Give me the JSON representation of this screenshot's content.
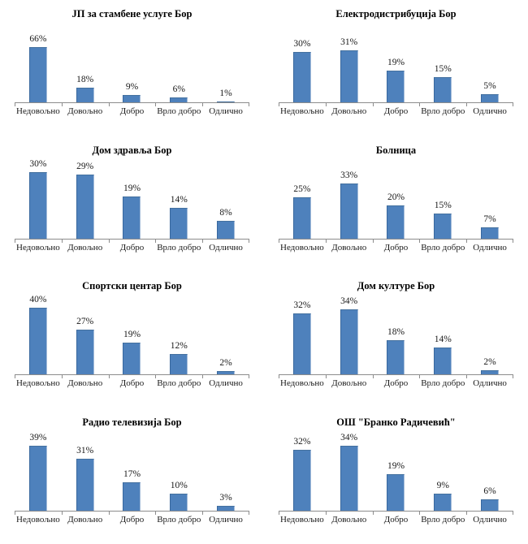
{
  "style": {
    "bar_color": "#4E81BC",
    "bar_border_dark": "#39689E",
    "bar_border_light": "#A3BBD9",
    "axis_color": "#8C8C8C",
    "text_color": "#1A1A1A"
  },
  "chart_data": [
    {
      "type": "bar",
      "title": "ЈП за стамбене услуге Бор",
      "categories": [
        "Недовољно",
        "Довољно",
        "Добро",
        "Врло добро",
        "Одлично"
      ],
      "values": [
        66,
        18,
        9,
        6,
        1
      ],
      "value_labels": [
        "66%",
        "18%",
        "9%",
        "6%",
        "1%"
      ],
      "unit": "%",
      "ylim": [
        0,
        80
      ],
      "grid": false,
      "legend": false
    },
    {
      "type": "bar",
      "title": "Електродистрибуција Бор",
      "categories": [
        "Недовољно",
        "Довољно",
        "Добро",
        "Врло добро",
        "Одлично"
      ],
      "values": [
        30,
        31,
        19,
        15,
        5
      ],
      "value_labels": [
        "30%",
        "31%",
        "19%",
        "15%",
        "5%"
      ],
      "unit": "%",
      "ylim": [
        0,
        40
      ],
      "grid": false,
      "legend": false
    },
    {
      "type": "bar",
      "title": "Дом здравља Бор",
      "categories": [
        "Недовољно",
        "Довољно",
        "Добро",
        "Врло добро",
        "Одлично"
      ],
      "values": [
        30,
        29,
        19,
        14,
        8
      ],
      "value_labels": [
        "30%",
        "29%",
        "19%",
        "14%",
        "8%"
      ],
      "unit": "%",
      "ylim": [
        0,
        30
      ],
      "grid": false,
      "legend": false
    },
    {
      "type": "bar",
      "title": "Болница",
      "categories": [
        "Недовољно",
        "Довољно",
        "Добро",
        "Врло добро",
        "Одлично"
      ],
      "values": [
        25,
        33,
        20,
        15,
        7
      ],
      "value_labels": [
        "25%",
        "33%",
        "20%",
        "15%",
        "7%"
      ],
      "unit": "%",
      "ylim": [
        0,
        40
      ],
      "grid": false,
      "legend": false
    },
    {
      "type": "bar",
      "title": "Спортски центар Бор",
      "categories": [
        "Недовољно",
        "Довољно",
        "Добро",
        "Врло добро",
        "Одлично"
      ],
      "values": [
        40,
        27,
        19,
        12,
        2
      ],
      "value_labels": [
        "40%",
        "27%",
        "19%",
        "12%",
        "2%"
      ],
      "unit": "%",
      "ylim": [
        0,
        40
      ],
      "grid": false,
      "legend": false
    },
    {
      "type": "bar",
      "title": "Дом културе Бор",
      "categories": [
        "Недовољно",
        "Довољно",
        "Добро",
        "Врло добро",
        "Одлично"
      ],
      "values": [
        32,
        34,
        18,
        14,
        2
      ],
      "value_labels": [
        "32%",
        "34%",
        "18%",
        "14%",
        "2%"
      ],
      "unit": "%",
      "ylim": [
        0,
        35
      ],
      "grid": false,
      "legend": false
    },
    {
      "type": "bar",
      "title": "Радио телевизија Бор",
      "categories": [
        "Недовољно",
        "Довољно",
        "Добро",
        "Врло добро",
        "Одлично"
      ],
      "values": [
        39,
        31,
        17,
        10,
        3
      ],
      "value_labels": [
        "39%",
        "31%",
        "17%",
        "10%",
        "3%"
      ],
      "unit": "%",
      "ylim": [
        0,
        40
      ],
      "grid": false,
      "legend": false
    },
    {
      "type": "bar",
      "title": "ОШ \"Бранко Радичевић\"",
      "categories": [
        "Недовољно",
        "Довољно",
        "Добро",
        "Врло добро",
        "Одлично"
      ],
      "values": [
        32,
        34,
        19,
        9,
        6
      ],
      "value_labels": [
        "32%",
        "34%",
        "19%",
        "9%",
        "6%"
      ],
      "unit": "%",
      "ylim": [
        0,
        35
      ],
      "grid": false,
      "legend": false
    }
  ]
}
